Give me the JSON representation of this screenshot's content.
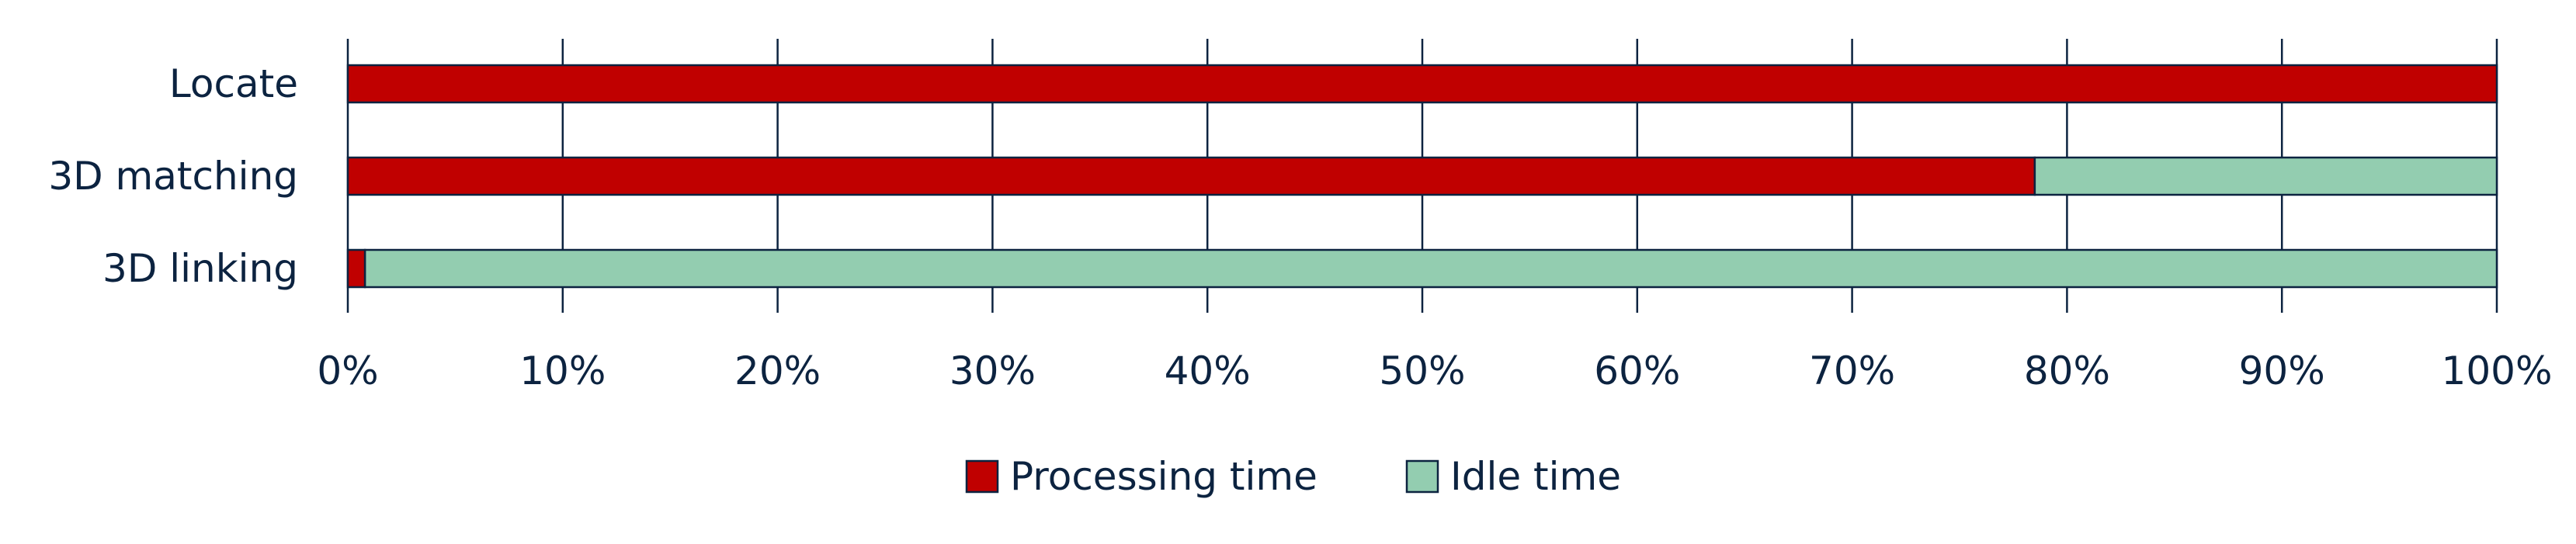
{
  "chart_data": {
    "type": "bar",
    "orientation": "horizontal",
    "stacked": true,
    "title": "",
    "xlabel": "",
    "ylabel": "",
    "categories": [
      "Locate",
      "3D matching",
      "3D linking"
    ],
    "series": [
      {
        "name": "Processing time",
        "values": [
          100,
          78.5,
          0.8
        ],
        "color": "#c00000"
      },
      {
        "name": "Idle time",
        "values": [
          0,
          21.5,
          99.2
        ],
        "color": "#93cdb0"
      }
    ],
    "xlim": [
      0,
      100
    ],
    "x_ticks": [
      0,
      10,
      20,
      30,
      40,
      50,
      60,
      70,
      80,
      90,
      100
    ],
    "x_tick_labels": [
      "0%",
      "10%",
      "20%",
      "30%",
      "40%",
      "50%",
      "60%",
      "70%",
      "80%",
      "90%",
      "100%"
    ],
    "grid": "vertical",
    "legend_position": "bottom-center",
    "colors": {
      "text": "#0c2340",
      "grid": "#0c2340",
      "bar_outline": "#0c2340"
    }
  }
}
